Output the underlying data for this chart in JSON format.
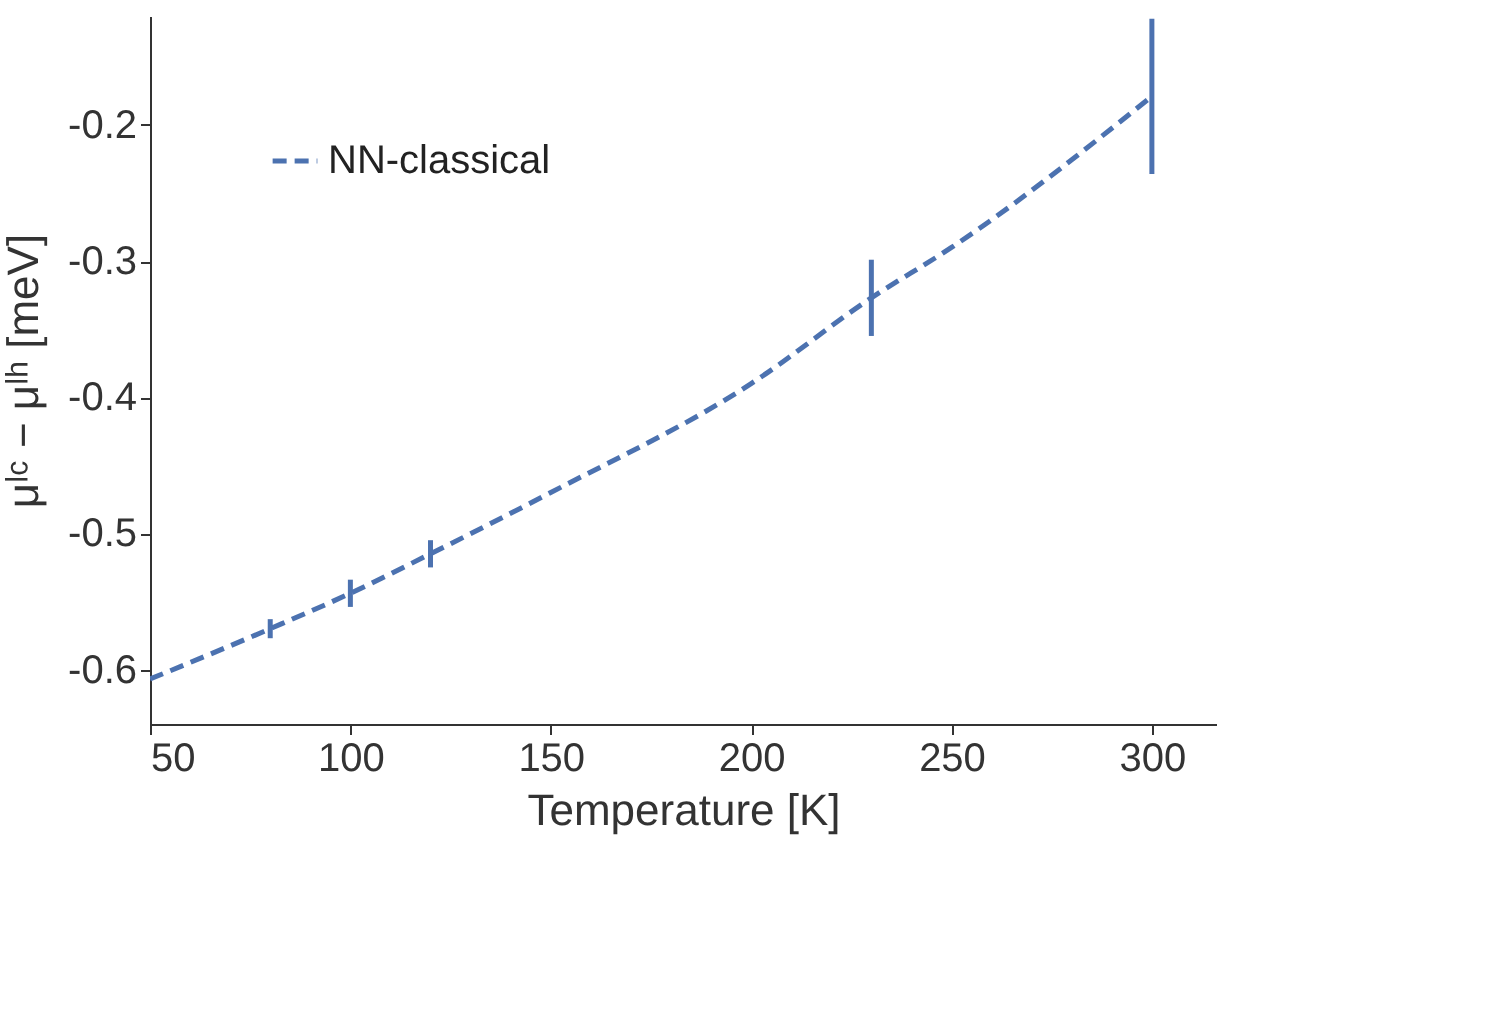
{
  "chart_data": {
    "type": "line",
    "xlabel": "Temperature [K]",
    "ylabel": "μˡᶜ − μˡʰ [meV]",
    "x": [
      50,
      80,
      100,
      120,
      150,
      200,
      230,
      250,
      300
    ],
    "series": [
      {
        "name": "NN-classical",
        "color": "#4c72b0",
        "line_style": "dashed",
        "values": [
          -0.607,
          -0.57,
          -0.544,
          -0.515,
          -0.47,
          -0.39,
          -0.327,
          -0.29,
          -0.179
        ],
        "errors": [
          null,
          0.007,
          0.01,
          0.01,
          null,
          null,
          0.028,
          null,
          0.057
        ]
      }
    ],
    "xlim": [
      50,
      316
    ],
    "xticks": [
      50,
      100,
      150,
      200,
      250,
      300
    ],
    "ylim": [
      -0.64,
      -0.12
    ],
    "yticks": [
      -0.6,
      -0.5,
      -0.4,
      -0.3,
      -0.2
    ],
    "legend": "top left",
    "grid": false
  }
}
